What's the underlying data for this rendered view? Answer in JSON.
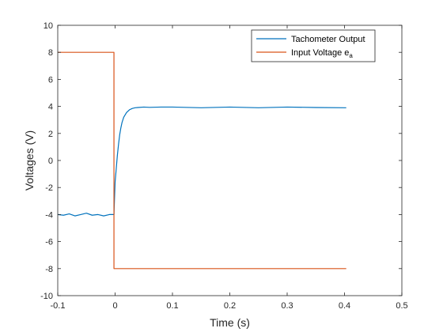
{
  "chart_data": {
    "type": "line",
    "title": "",
    "xlabel": "Time (s)",
    "ylabel": "Voltages (V)",
    "xlim": [
      -0.1,
      0.5
    ],
    "ylim": [
      -10,
      10
    ],
    "xticks": [
      -0.1,
      0,
      0.1,
      0.2,
      0.3,
      0.4,
      0.5
    ],
    "xtick_labels": [
      "-0.1",
      "0",
      "0.1",
      "0.2",
      "0.3",
      "0.4",
      "0.5"
    ],
    "yticks": [
      -10,
      -8,
      -6,
      -4,
      -2,
      0,
      2,
      4,
      6,
      8,
      10
    ],
    "ytick_labels": [
      "-10",
      "-8",
      "-6",
      "-4",
      "-2",
      "0",
      "2",
      "4",
      "6",
      "8",
      "10"
    ],
    "grid": false,
    "legend_position": "top-right",
    "series": [
      {
        "name": "Tachometer Output",
        "color": "#0072BD",
        "x": [
          -0.1,
          -0.09,
          -0.08,
          -0.07,
          -0.06,
          -0.05,
          -0.04,
          -0.03,
          -0.02,
          -0.01,
          -0.002,
          0.0,
          0.002,
          0.004,
          0.006,
          0.008,
          0.01,
          0.012,
          0.015,
          0.02,
          0.025,
          0.03,
          0.035,
          0.04,
          0.05,
          0.06,
          0.08,
          0.1,
          0.15,
          0.2,
          0.25,
          0.3,
          0.35,
          0.4,
          0.403
        ],
        "y": [
          -4.0,
          -4.05,
          -3.95,
          -4.1,
          -4.0,
          -3.9,
          -4.05,
          -4.0,
          -4.1,
          -4.0,
          -4.0,
          -1.6,
          -0.6,
          0.4,
          1.2,
          1.9,
          2.4,
          2.8,
          3.2,
          3.55,
          3.75,
          3.85,
          3.9,
          3.92,
          3.95,
          3.93,
          3.95,
          3.95,
          3.9,
          3.95,
          3.9,
          3.95,
          3.92,
          3.9,
          3.9
        ]
      },
      {
        "name": "Input Voltage e_a",
        "color": "#D95319",
        "x": [
          -0.1,
          -0.002,
          -0.002,
          0.403
        ],
        "y": [
          8.0,
          8.0,
          -8.0,
          -8.0
        ]
      }
    ]
  },
  "legend": {
    "items": [
      {
        "label": "Tachometer Output",
        "sub": ""
      },
      {
        "label": "Input Voltage e",
        "sub": "a"
      }
    ]
  }
}
